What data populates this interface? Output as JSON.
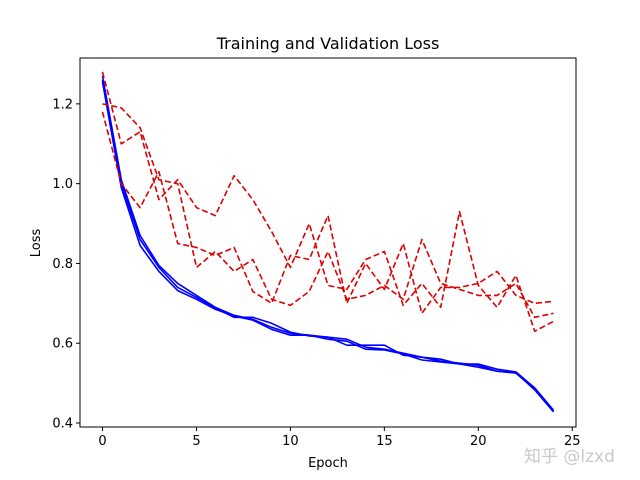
{
  "watermark": "知乎 @lzxd",
  "chart_data": {
    "type": "line",
    "title": "Training and Validation Loss",
    "xlabel": "Epoch",
    "ylabel": "Loss",
    "xlim": [
      -1.2,
      25.2
    ],
    "ylim": [
      0.39,
      1.315
    ],
    "xticks": [
      0,
      5,
      10,
      15,
      20,
      25
    ],
    "yticks": [
      0.4,
      0.6,
      0.8,
      1.0,
      1.2
    ],
    "grid": false,
    "legend": "none",
    "x": [
      0,
      1,
      2,
      3,
      4,
      5,
      6,
      7,
      8,
      9,
      10,
      11,
      12,
      13,
      14,
      15,
      16,
      17,
      18,
      19,
      20,
      21,
      22,
      23,
      24
    ],
    "series": [
      {
        "style": "solid",
        "color": "#0000ff",
        "values": [
          1.27,
          1.01,
          0.87,
          0.795,
          0.75,
          0.72,
          0.69,
          0.67,
          0.66,
          0.64,
          0.625,
          0.62,
          0.615,
          0.61,
          0.59,
          0.585,
          0.575,
          0.565,
          0.555,
          0.55,
          0.545,
          0.53,
          0.525,
          0.485,
          0.43
        ]
      },
      {
        "style": "solid",
        "color": "#0000ff",
        "values": [
          1.26,
          1.0,
          0.86,
          0.79,
          0.74,
          0.715,
          0.688,
          0.665,
          0.665,
          0.65,
          0.628,
          0.618,
          0.615,
          0.595,
          0.595,
          0.595,
          0.57,
          0.565,
          0.56,
          0.548,
          0.548,
          0.535,
          0.528,
          0.488,
          0.432
        ]
      },
      {
        "style": "solid",
        "color": "#0000ff",
        "values": [
          1.255,
          0.99,
          0.845,
          0.78,
          0.732,
          0.71,
          0.685,
          0.668,
          0.658,
          0.635,
          0.62,
          0.62,
          0.61,
          0.605,
          0.585,
          0.583,
          0.573,
          0.558,
          0.553,
          0.548,
          0.54,
          0.53,
          0.526,
          0.483,
          0.428
        ]
      },
      {
        "style": "dashed",
        "color": "#dd0000",
        "values": [
          1.28,
          1.1,
          1.13,
          0.96,
          1.01,
          0.94,
          0.92,
          1.02,
          0.96,
          0.88,
          0.79,
          0.9,
          0.745,
          0.735,
          0.81,
          0.83,
          0.695,
          0.75,
          0.69,
          0.93,
          0.745,
          0.69,
          0.77,
          0.63,
          0.655
        ]
      },
      {
        "style": "dashed",
        "color": "#dd0000",
        "values": [
          1.18,
          1.0,
          0.94,
          1.03,
          0.85,
          0.84,
          0.82,
          0.84,
          0.73,
          0.7,
          0.82,
          0.81,
          0.92,
          0.7,
          0.8,
          0.735,
          0.85,
          0.675,
          0.74,
          0.74,
          0.75,
          0.78,
          0.72,
          0.7,
          0.705
        ]
      },
      {
        "style": "dashed",
        "color": "#dd0000",
        "values": [
          1.2,
          1.19,
          1.14,
          1.01,
          1.0,
          0.79,
          0.83,
          0.78,
          0.81,
          0.71,
          0.695,
          0.73,
          0.83,
          0.71,
          0.72,
          0.745,
          0.71,
          0.86,
          0.75,
          0.735,
          0.72,
          0.72,
          0.75,
          0.665,
          0.675
        ]
      }
    ]
  }
}
